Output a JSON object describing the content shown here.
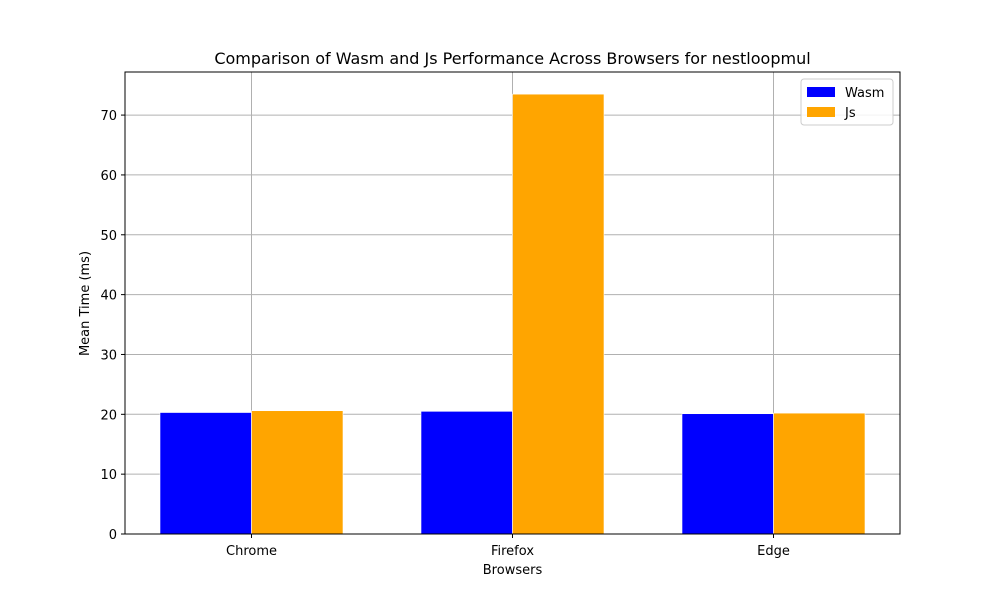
{
  "chart_data": {
    "type": "bar",
    "title": "Comparison of Wasm and Js Performance Across Browsers for nestloopmul",
    "xlabel": "Browsers",
    "ylabel": "Mean Time (ms)",
    "categories": [
      "Chrome",
      "Firefox",
      "Edge"
    ],
    "series": [
      {
        "name": "Wasm",
        "color": "#0000ff",
        "values": [
          20.3,
          20.5,
          20.1
        ]
      },
      {
        "name": "Js",
        "color": "#ffa500",
        "values": [
          20.6,
          73.5,
          20.2
        ]
      }
    ],
    "ylim": [
      0,
      77.2
    ],
    "yticks": [
      0,
      10,
      20,
      30,
      40,
      50,
      60,
      70
    ],
    "grid": true,
    "legend_position": "top-right"
  }
}
